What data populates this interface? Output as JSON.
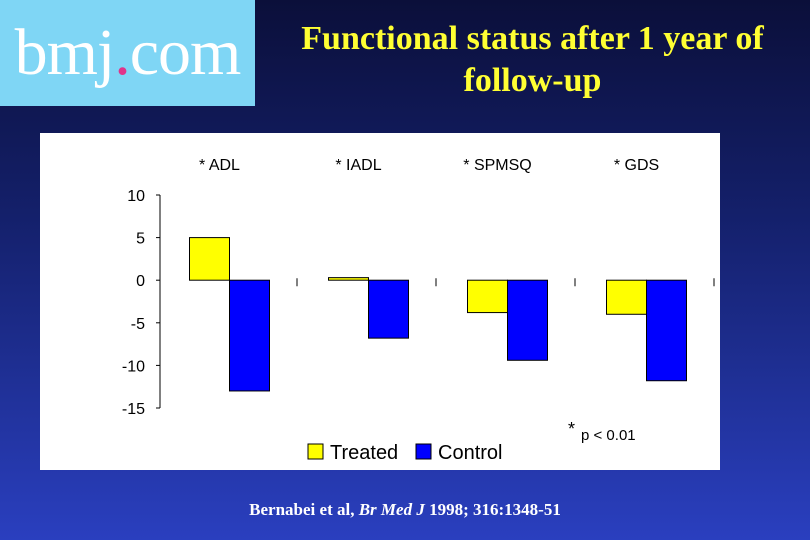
{
  "logo": {
    "part1": "bmj",
    "dot": ".",
    "part2": "com",
    "dot_color": "#e0348a"
  },
  "slide_title": "Functional status after 1 year of follow-up",
  "footnote": {
    "star": "*",
    "text": "p < 0.01"
  },
  "citation": {
    "authors": "Bernabei et al, ",
    "journal": "Br Med J",
    "details": " 1998; 316:1348-51"
  },
  "chart_data": {
    "type": "bar",
    "categories": [
      "* ADL",
      "* IADL",
      "* SPMSQ",
      "* GDS"
    ],
    "series": [
      {
        "name": "Treated",
        "values": [
          5,
          0.3,
          -3.8,
          -4
        ],
        "color": "#ffff00"
      },
      {
        "name": "Control",
        "values": [
          -13,
          -6.8,
          -9.4,
          -11.8
        ],
        "color": "#0000ff"
      }
    ],
    "ylim": [
      -15,
      10
    ],
    "yticks": [
      10,
      5,
      0,
      -5,
      -10,
      -15
    ],
    "legend_position": "bottom",
    "category_labels_position": "top",
    "grid": false
  }
}
